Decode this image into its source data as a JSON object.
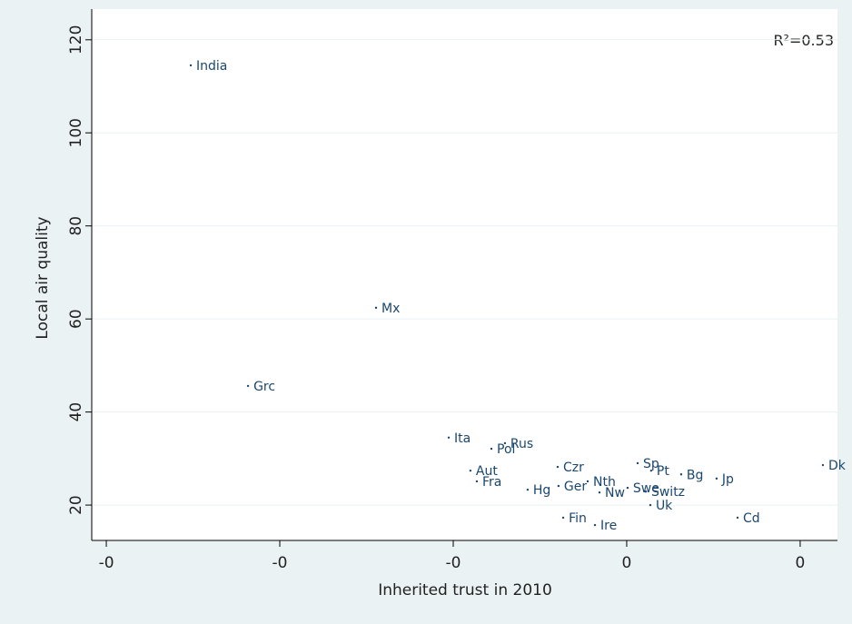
{
  "chart_data": {
    "type": "scatter",
    "xlabel": "Inherited trust in 2010",
    "ylabel": "Local air quality",
    "annotation": "R²=0.53",
    "color": "#1a476f",
    "grid": true,
    "xlim": [
      -0.3084,
      0.1215
    ],
    "ylim": [
      12.4,
      126.6
    ],
    "xticks": [
      {
        "value": -0.3,
        "label": "-0"
      },
      {
        "value": -0.2,
        "label": "-0"
      },
      {
        "value": -0.1,
        "label": "-0"
      },
      {
        "value": 0,
        "label": "0"
      },
      {
        "value": 0.1,
        "label": "0"
      }
    ],
    "yticks": [
      20,
      40,
      60,
      80,
      100,
      120
    ],
    "labels": [
      "India",
      "Mx",
      "Grc",
      "Ita",
      "Rus",
      "Pol",
      "Czr",
      "Sp",
      "Pt",
      "Bg",
      "Jp",
      "Dk",
      "Aut",
      "Fra",
      "Hg",
      "Ger",
      "Nth",
      "Nw",
      "Swe",
      "Switz",
      "Uk",
      "Fin",
      "Ire",
      "Cd"
    ],
    "x": [
      -0.2513,
      -0.1445,
      -0.2183,
      -0.1026,
      -0.0702,
      -0.078,
      -0.0398,
      0.0063,
      0.0141,
      0.0314,
      0.0518,
      0.1131,
      -0.0901,
      -0.0864,
      -0.0571,
      -0.0393,
      -0.0225,
      -0.0157,
      0.0005,
      0.011,
      0.0136,
      -0.0366,
      -0.0183,
      0.0639
    ],
    "values": [
      114.5,
      62.4,
      45.6,
      34.5,
      33.3,
      32.1,
      28.2,
      29.0,
      27.4,
      26.6,
      25.7,
      28.6,
      27.4,
      25.1,
      23.3,
      24.1,
      25.1,
      22.7,
      23.7,
      22.9,
      20.0,
      17.3,
      15.7,
      17.3
    ]
  }
}
